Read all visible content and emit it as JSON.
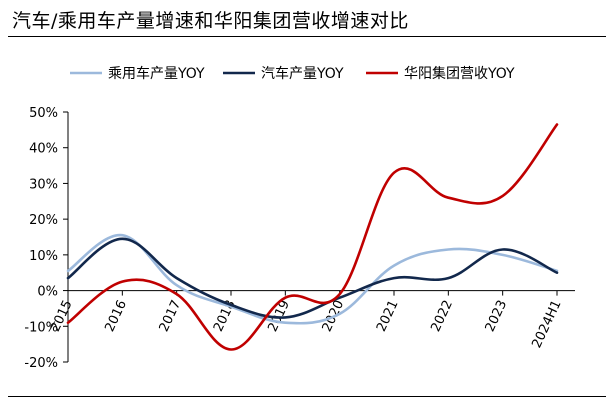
{
  "header": {
    "title": "汽车/乘用车产量增速和华阳集团营收增速对比"
  },
  "chart_data": {
    "type": "line",
    "title": "汽车/乘用车产量增速和华阳集团营收增速对比",
    "categories": [
      "2015",
      "2016",
      "2017",
      "2018",
      "2019",
      "2020",
      "2021",
      "2022",
      "2023",
      "2024H1"
    ],
    "y_ticks": [
      "50%",
      "40%",
      "30%",
      "20%",
      "10%",
      "0%",
      "-10%",
      "-20%"
    ],
    "ylim": [
      -20,
      50
    ],
    "legend_position": "top",
    "grid": false,
    "series": [
      {
        "name": "乘用车产量YOY",
        "color": "#9cb9dc",
        "values": [
          5.5,
          15.5,
          1.5,
          -4.5,
          -9,
          -6.5,
          7,
          11.5,
          10,
          5.5
        ]
      },
      {
        "name": "汽车产量YOY",
        "color": "#12284c",
        "values": [
          3.5,
          14.5,
          3.5,
          -4,
          -7.5,
          -2,
          3.5,
          3.5,
          11.5,
          5
        ]
      },
      {
        "name": "华阳集团营收YOY",
        "color": "#c00000",
        "values": [
          -9,
          2.5,
          -1,
          -16.5,
          -2,
          -1,
          33,
          26,
          26.5,
          46.5
        ]
      }
    ]
  }
}
